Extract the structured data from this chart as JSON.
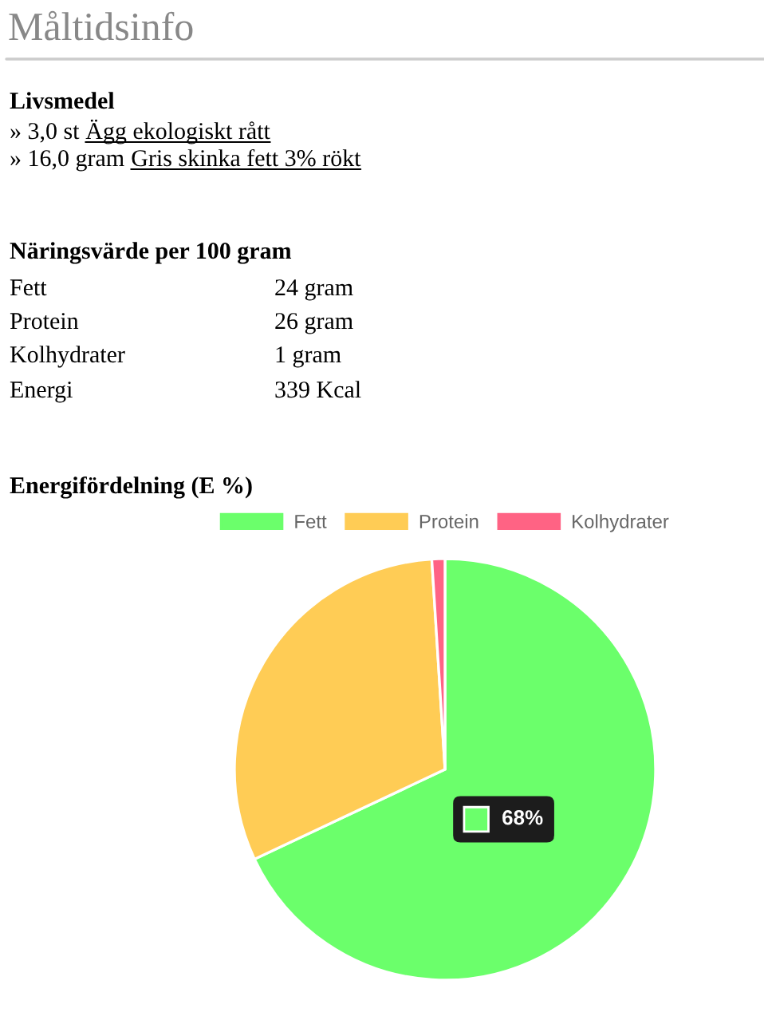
{
  "chart_data": {
    "type": "pie",
    "title": "Energifördelning (E %)",
    "categories": [
      "Fett",
      "Protein",
      "Kolhydrater"
    ],
    "values": [
      68,
      31,
      1
    ],
    "colors": [
      "#6bff6b",
      "#ffcc55",
      "#ff6384"
    ],
    "legend": "top",
    "value_labels": [
      "68%",
      null,
      null
    ],
    "annotations": [
      "Måltidsinfo",
      "Livsmedel",
      "» 3,0 st",
      "Ägg ekologiskt rått",
      "» 16,0 gram",
      "Gris skinka fett 3% rökt",
      "Näringsvärde per 100 gram",
      "Fett",
      "24 gram",
      "Protein",
      "26 gram",
      "Kolhydrater",
      "1 gram",
      "Energi",
      "339 Kcal"
    ]
  }
}
